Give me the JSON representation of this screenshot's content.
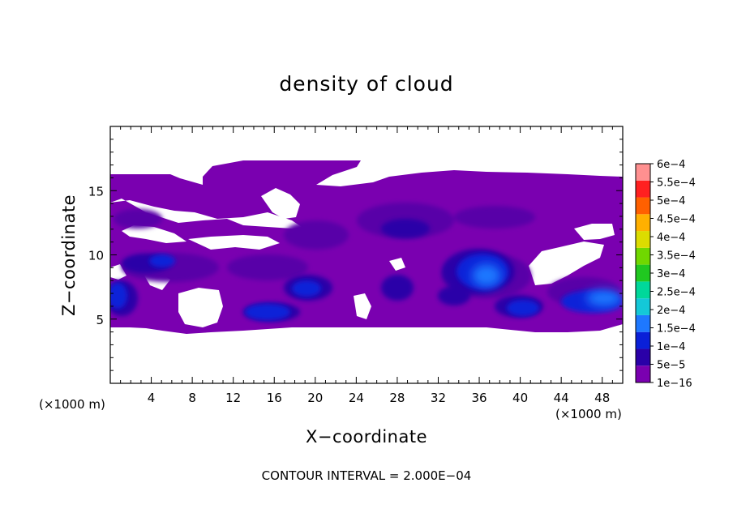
{
  "chart_data": {
    "type": "heatmap",
    "title": "density of cloud",
    "xlabel": "X−coordinate",
    "ylabel": "Z−coordinate",
    "x_unit": "(×1000 m)",
    "y_unit": "(×1000 m)",
    "xlim": [
      0,
      50
    ],
    "ylim": [
      0,
      20
    ],
    "x_ticks": [
      4,
      8,
      12,
      16,
      20,
      24,
      28,
      32,
      36,
      40,
      44,
      48
    ],
    "x_tick_labels": [
      "4",
      "8",
      "12",
      "16",
      "20",
      "24",
      "28",
      "32",
      "36",
      "40",
      "44",
      "48"
    ],
    "y_ticks": [
      5,
      10,
      15
    ],
    "y_tick_labels": [
      "5",
      "10",
      "15"
    ],
    "colorbar": {
      "levels": [
        1e-16,
        5e-05,
        0.0001,
        0.00015,
        0.0002,
        0.00025,
        0.0003,
        0.00035,
        0.0004,
        0.00045,
        0.0005,
        0.00055,
        0.0006
      ],
      "labels": [
        "1e−16",
        "5e−5",
        "1e−4",
        "1.5e−4",
        "2e−4",
        "2.5e−4",
        "3e−4",
        "3.5e−4",
        "4e−4",
        "4.5e−4",
        "5e−4",
        "5.5e−4",
        "6e−4"
      ],
      "colors": [
        "#7a00b0",
        "#2a00a8",
        "#0a20d8",
        "#1e78ff",
        "#14c8d8",
        "#00d89a",
        "#20c820",
        "#70d800",
        "#dcdc00",
        "#ffb000",
        "#ff6000",
        "#ff2020",
        "#ff9090"
      ]
    },
    "field_description_points": [
      {
        "x": 4.8,
        "z": 9.8,
        "level": 2
      },
      {
        "x": 14.0,
        "z": 5.5,
        "level": 2
      },
      {
        "x": 18.5,
        "z": 7.0,
        "level": 2
      },
      {
        "x": 29.0,
        "z": 11.0,
        "level": 1
      },
      {
        "x": 35.5,
        "z": 8.5,
        "level": 2
      },
      {
        "x": 35.5,
        "z": 8.0,
        "level": 3
      },
      {
        "x": 40.5,
        "z": 6.0,
        "level": 2
      },
      {
        "x": 48.0,
        "z": 6.5,
        "level": 3
      },
      {
        "x": 1.0,
        "z": 6.5,
        "level": 2
      }
    ]
  },
  "footer": "CONTOUR INTERVAL = 2.000E−04",
  "colors": {
    "background": "#ffffff",
    "frame": "#000000"
  }
}
